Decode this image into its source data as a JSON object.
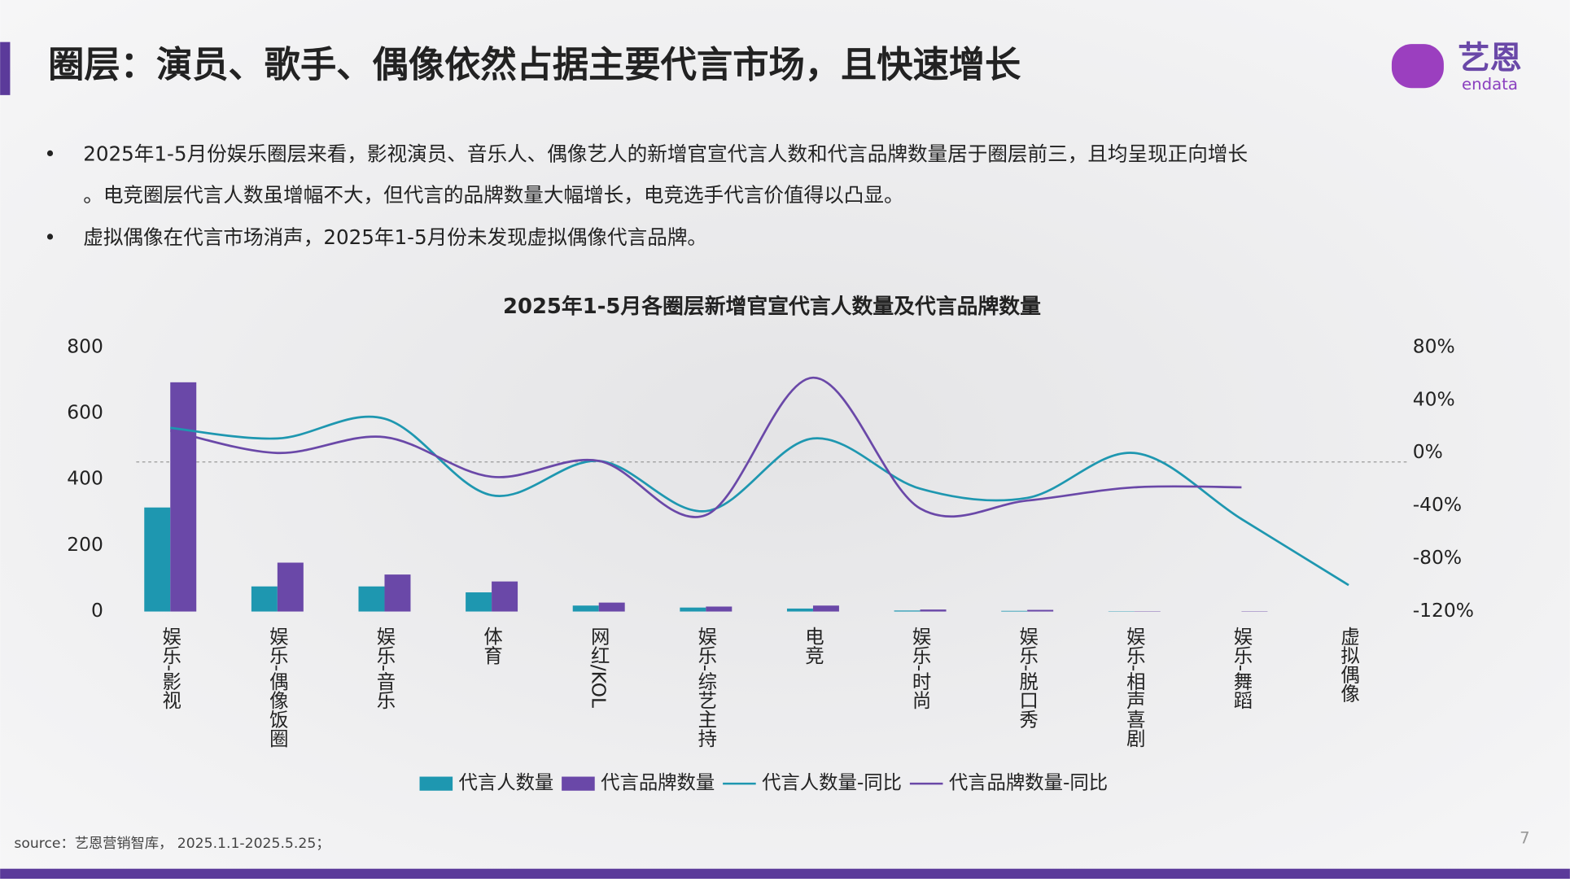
{
  "header": {
    "title": "圈层：演员、歌手、偶像依然占据主要代言市场，且快速增长",
    "logo": {
      "name": "艺恩",
      "sub": "endata"
    }
  },
  "bullets": [
    "2025年1-5月份娱乐圈层来看，影视演员、音乐人、偶像艺人的新增官宣代言人数和代言品牌数量居于圈层前三，且均呈现正向增长。电竞圈层代言人数虽增幅不大，但代言的品牌数量大幅增长，电竞选手代言价值得以凸显。",
    "虚拟偶像在代言市场消声，2025年1-5月份未发现虚拟偶像代言品牌。"
  ],
  "chart_data": {
    "type": "bar-line",
    "title": "2025年1-5月各圈层新增官宣代言人数量及代言品牌数量",
    "categories": [
      "娱乐-影视",
      "娱乐-偶像饭圈",
      "娱乐-音乐",
      "体育",
      "网红/KOL",
      "娱乐-综艺主持",
      "电竞",
      "娱乐-时尚",
      "娱乐-脱口秀",
      "娱乐-相声喜剧",
      "娱乐-舞蹈",
      "虚拟偶像"
    ],
    "series": [
      {
        "name": "代言人数量",
        "type": "bar",
        "color": "#1e97b0",
        "values": [
          315,
          76,
          76,
          58,
          18,
          12,
          9,
          3,
          2,
          1,
          0,
          0
        ]
      },
      {
        "name": "代言品牌数量",
        "type": "bar",
        "color": "#6a48a8",
        "values": [
          694,
          148,
          112,
          91,
          27,
          15,
          18,
          6,
          5,
          1,
          1,
          0
        ]
      },
      {
        "name": "代言人数量-同比",
        "type": "line",
        "axis": "y2",
        "color": "#1e97b0",
        "values": [
          19,
          11,
          26,
          -32,
          -6,
          -44,
          11,
          -27,
          -34,
          0,
          -50,
          -100
        ]
      },
      {
        "name": "代言品牌数量-同比",
        "type": "line",
        "axis": "y2",
        "color": "#6a48a8",
        "values": [
          17,
          0,
          12,
          -18,
          -6,
          -47,
          57,
          -42,
          -36,
          -26,
          -26,
          null
        ]
      }
    ],
    "ylim": [
      0,
      800
    ],
    "yticks": [
      0,
      200,
      400,
      600,
      800
    ],
    "y2lim": [
      -120,
      80
    ],
    "y2ticks": [
      {
        "value": 80,
        "label": "80%"
      },
      {
        "value": 40,
        "label": "40%"
      },
      {
        "value": 0,
        "label": "0%"
      },
      {
        "value": -40,
        "label": "-40%"
      },
      {
        "value": -80,
        "label": "-80%"
      },
      {
        "value": -120,
        "label": "-120%"
      }
    ],
    "legend": "bottom"
  },
  "source": "source：艺恩营销智库， 2025.1.1-2025.5.25；",
  "page_number": "7"
}
